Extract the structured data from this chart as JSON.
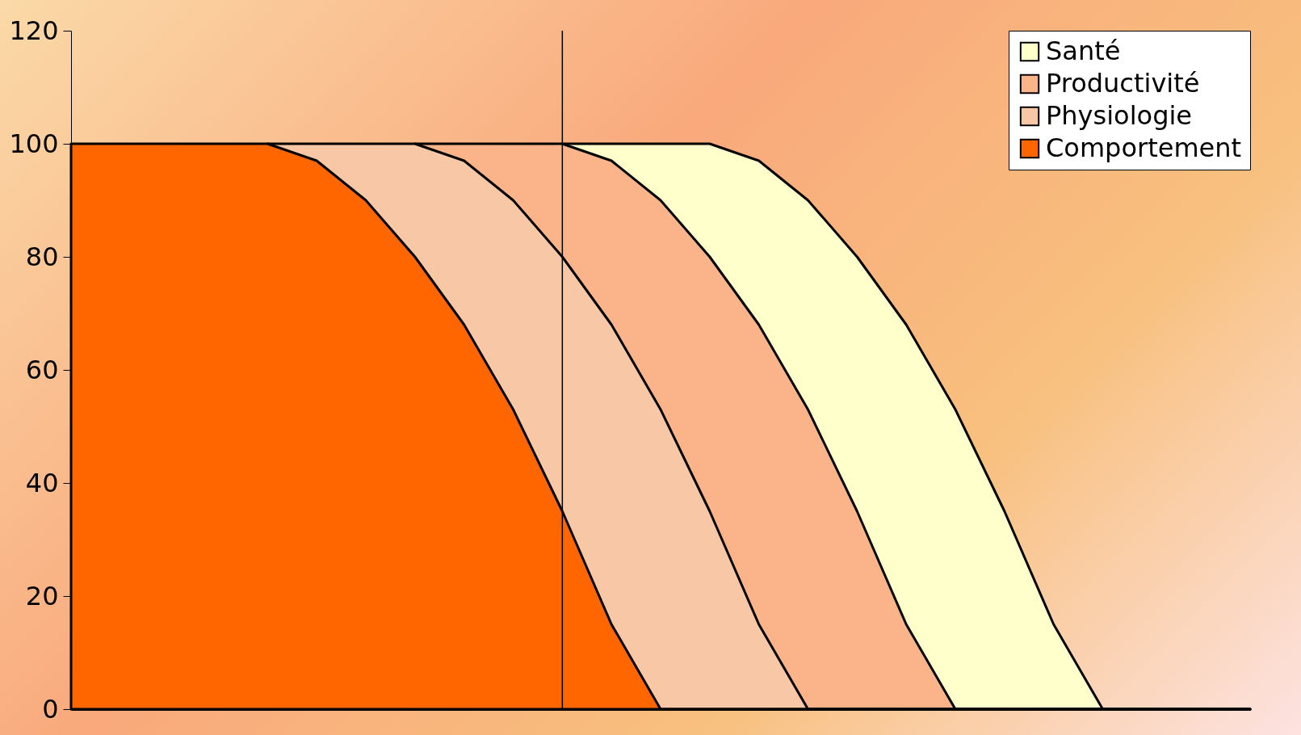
{
  "chart_data": {
    "type": "area",
    "categories": [
      null,
      null,
      null,
      null,
      null,
      null,
      null,
      null,
      null,
      null,
      null,
      null,
      null,
      null,
      null,
      null,
      null,
      null,
      null,
      null,
      null,
      null,
      null,
      null,
      null
    ],
    "ylim": [
      0,
      120
    ],
    "yticks": [
      0,
      20,
      40,
      60,
      80,
      100,
      120
    ],
    "tick_labels": "y",
    "grid": false,
    "legend": "top right",
    "line_style": "solid",
    "series": [
      {
        "name": "Santé",
        "color": "#ffffcc",
        "values": [
          null,
          null,
          null,
          null,
          null,
          null,
          null,
          null,
          null,
          null,
          100,
          100,
          100,
          100,
          97,
          90,
          80,
          68,
          53,
          35,
          15,
          0,
          0,
          0,
          0
        ]
      },
      {
        "name": "Productivité",
        "color": "#fbb38a",
        "values": [
          null,
          null,
          null,
          null,
          null,
          null,
          null,
          100,
          100,
          100,
          100,
          97,
          90,
          80,
          68,
          53,
          35,
          15,
          0,
          0,
          0,
          0,
          0,
          0,
          0
        ]
      },
      {
        "name": "Physiologie",
        "color": "#f7c7a6",
        "values": [
          null,
          null,
          null,
          null,
          100,
          100,
          100,
          100,
          97,
          90,
          80,
          68,
          53,
          35,
          15,
          0,
          0,
          0,
          0,
          0,
          0,
          0,
          0,
          0,
          0
        ]
      },
      {
        "name": "Comportement",
        "color": "#ff6600",
        "values": [
          100,
          100,
          100,
          100,
          100,
          97,
          90,
          80,
          68,
          53,
          35,
          15,
          0,
          0,
          0,
          0,
          0,
          0,
          0,
          0,
          0,
          0,
          0,
          0,
          0
        ]
      }
    ]
  }
}
